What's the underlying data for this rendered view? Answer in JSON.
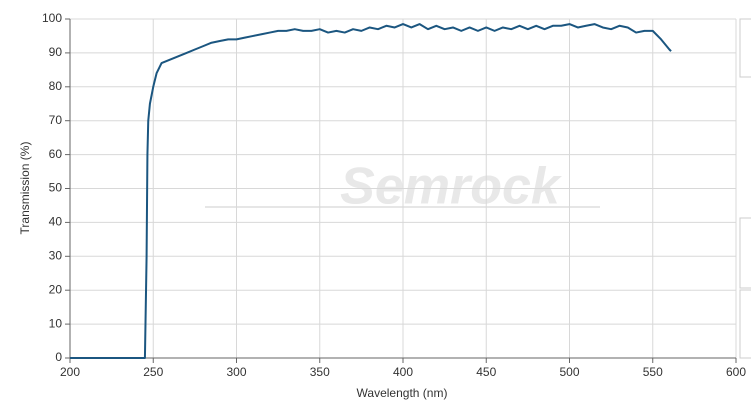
{
  "chart_data": {
    "type": "line",
    "watermark": "Semrock",
    "x_label": "Wavelength (nm)",
    "y_label": "Transmission (%)",
    "xlim": [
      200,
      600
    ],
    "ylim": [
      0,
      100
    ],
    "xticks": [
      200,
      250,
      300,
      350,
      400,
      450,
      500,
      550,
      600
    ],
    "yticks": [
      0,
      10,
      20,
      30,
      40,
      50,
      60,
      70,
      80,
      90,
      100
    ],
    "grid": true,
    "series": [
      {
        "color": "#1b5680",
        "x": [
          200,
          245,
          246,
          246.5,
          247,
          248,
          250,
          252,
          255,
          260,
          265,
          270,
          275,
          280,
          285,
          290,
          295,
          300,
          305,
          310,
          315,
          320,
          325,
          330,
          335,
          340,
          345,
          350,
          355,
          360,
          365,
          370,
          375,
          380,
          385,
          390,
          395,
          400,
          405,
          410,
          415,
          420,
          425,
          430,
          435,
          440,
          445,
          450,
          455,
          460,
          465,
          470,
          475,
          480,
          485,
          490,
          495,
          500,
          505,
          510,
          515,
          520,
          525,
          530,
          535,
          540,
          545,
          550,
          555,
          560,
          561
        ],
        "values": [
          0,
          0,
          30,
          60,
          70,
          75,
          80,
          84,
          87,
          88,
          89,
          90,
          91,
          92,
          93,
          93.5,
          94,
          94,
          94.5,
          95,
          95.5,
          96,
          96.5,
          96.5,
          97,
          96.5,
          96.5,
          97,
          96,
          96.5,
          96,
          97,
          96.5,
          97.5,
          97,
          98,
          97.5,
          98.5,
          97.5,
          98.5,
          97,
          98,
          97,
          97.5,
          96.5,
          97.5,
          96.5,
          97.5,
          96.5,
          97.5,
          97,
          98,
          97,
          98,
          97,
          98,
          98,
          98.5,
          97.5,
          98,
          98.5,
          97.5,
          97,
          98,
          97.5,
          96,
          96.5,
          96.5,
          94,
          91,
          90.5
        ]
      }
    ]
  }
}
